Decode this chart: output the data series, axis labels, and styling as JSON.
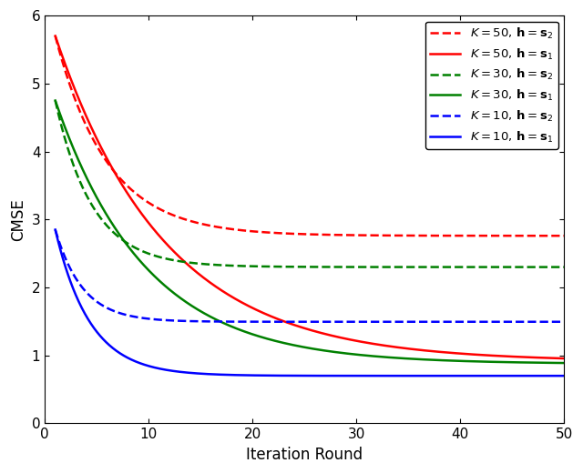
{
  "xlabel": "Iteration Round",
  "ylabel": "CMSE",
  "xlim": [
    0,
    50
  ],
  "ylim": [
    0,
    6
  ],
  "yticks": [
    0,
    1,
    2,
    3,
    4,
    5,
    6
  ],
  "xticks": [
    0,
    10,
    20,
    30,
    40,
    50
  ],
  "curves": [
    {
      "label": "$K = 50,\\, \\mathbf{h} = \\mathbf{s}_2$",
      "color": "red",
      "linestyle": "dashed",
      "start": 5.7,
      "asymptote": 2.76,
      "decay": 0.2
    },
    {
      "label": "$K = 50,\\, \\mathbf{h} = \\mathbf{s}_1$",
      "color": "red",
      "linestyle": "solid",
      "start": 5.7,
      "asymptote": 0.91,
      "decay": 0.095
    },
    {
      "label": "$K = 30,\\, \\mathbf{h} = \\mathbf{s}_2$",
      "color": "green",
      "linestyle": "dashed",
      "start": 4.75,
      "asymptote": 2.3,
      "decay": 0.28
    },
    {
      "label": "$K = 30,\\, \\mathbf{h} = \\mathbf{s}_1$",
      "color": "green",
      "linestyle": "solid",
      "start": 4.75,
      "asymptote": 0.875,
      "decay": 0.115
    },
    {
      "label": "$K = 10,\\, \\mathbf{h} = \\mathbf{s}_2$",
      "color": "blue",
      "linestyle": "dashed",
      "start": 2.85,
      "asymptote": 1.495,
      "decay": 0.38
    },
    {
      "label": "$K = 10,\\, \\mathbf{h} = \\mathbf{s}_1$",
      "color": "blue",
      "linestyle": "solid",
      "start": 2.85,
      "asymptote": 0.7,
      "decay": 0.3
    }
  ],
  "legend_loc": "upper right",
  "linewidth": 1.8,
  "background_color": "#ffffff"
}
